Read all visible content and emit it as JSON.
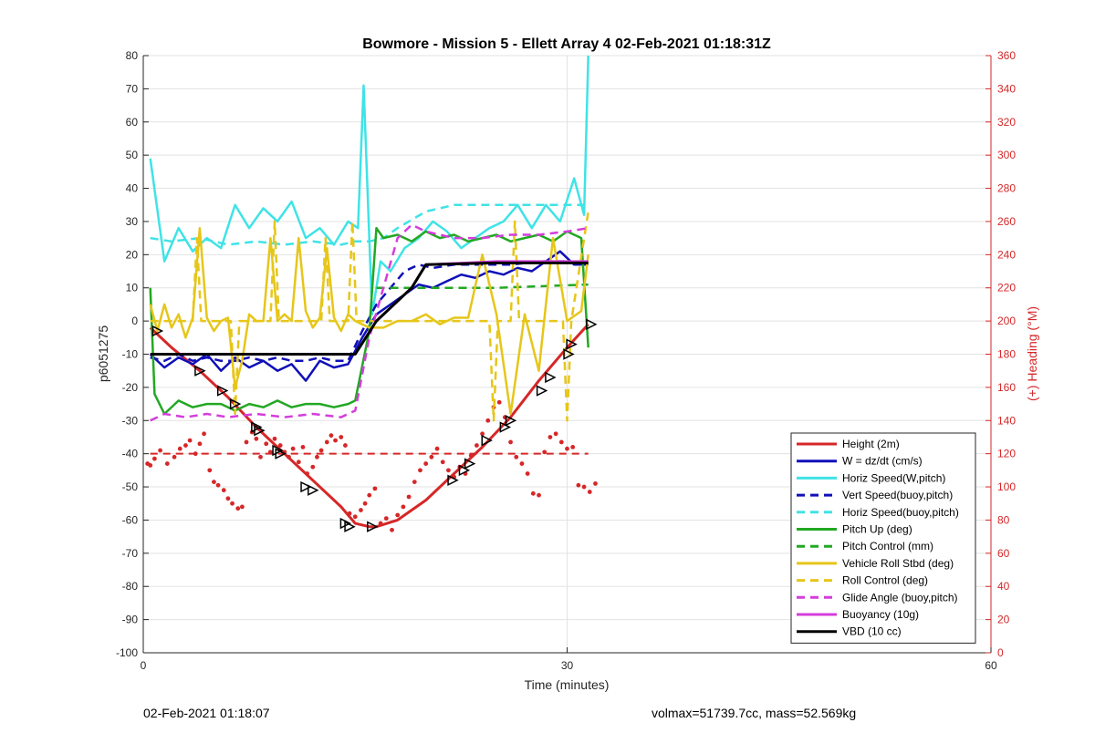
{
  "footer": {
    "timestamp": "02-Feb-2021 01:18:07",
    "stats": "volmax=51739.7cc, mass=52.569kg"
  },
  "colors": {
    "height": "#d62728",
    "w": "#1010b8",
    "horiz": "#3fe3e6",
    "pitch": "#22a822",
    "roll": "#e6c619",
    "glide": "#d43ddc",
    "vbd": "#000000",
    "right_axis": "#d62728"
  },
  "chart_data": {
    "type": "line",
    "title": "Bowmore - Mission 5 - Ellett Array 4 02-Feb-2021 01:18:31Z",
    "xlabel": "Time (minutes)",
    "ylabel": "p6051275",
    "ylabel_right": "(+) Heading (°M)",
    "xlim": [
      0,
      60
    ],
    "ylim": [
      -100,
      80
    ],
    "ylim_right": [
      0,
      360
    ],
    "xticks": [
      0,
      30,
      60
    ],
    "yticks": [
      -100,
      -90,
      -80,
      -70,
      -60,
      -50,
      -40,
      -30,
      -20,
      -10,
      0,
      10,
      20,
      30,
      40,
      50,
      60,
      70,
      80
    ],
    "yticks_right": [
      0,
      20,
      40,
      60,
      80,
      100,
      120,
      140,
      160,
      180,
      200,
      220,
      240,
      260,
      280,
      300,
      320,
      340,
      360
    ],
    "grid": true,
    "legend_position": "bottom-right",
    "series": [
      {
        "key": "height",
        "name": "Height (2m)",
        "style": "solid",
        "color": "#d62728",
        "x": [
          0.5,
          2,
          4,
          6,
          8,
          10,
          12,
          14,
          15,
          16,
          16.5,
          18,
          20,
          22,
          24,
          26,
          28,
          30,
          31.5
        ],
        "y": [
          -2,
          -8,
          -15,
          -23,
          -32,
          -40,
          -48,
          -56,
          -61,
          -62,
          -62,
          -60,
          -54,
          -46,
          -38,
          -29,
          -18,
          -8,
          -1
        ]
      },
      {
        "key": "w",
        "name": "W = dz/dt (cm/s)",
        "style": "solid",
        "color": "#1010b8",
        "x": [
          0.5,
          1.5,
          2.5,
          3.5,
          4.5,
          5.5,
          6.5,
          7.5,
          8.5,
          9.5,
          10.5,
          11.5,
          12.5,
          13.5,
          14.5,
          15.5,
          16.5,
          17.5,
          18.5,
          19.5,
          20.5,
          21.5,
          22.5,
          23.5,
          24.5,
          25.5,
          26.5,
          27.5,
          28.5,
          29.5,
          30.5,
          31.5
        ],
        "y": [
          -10,
          -14,
          -11,
          -13,
          -10,
          -15,
          -11,
          -14,
          -12,
          -15,
          -13,
          -18,
          -12,
          -14,
          -13,
          -5,
          2,
          5,
          8,
          11,
          10,
          12,
          14,
          13,
          15,
          14,
          16,
          15,
          18,
          21,
          17,
          17
        ]
      },
      {
        "key": "horiz",
        "name": "Horiz Speed(W,pitch)",
        "style": "solid",
        "color": "#3fe3e6",
        "x": [
          0.5,
          1.5,
          2.5,
          3.5,
          4.5,
          5.5,
          6.5,
          7.5,
          8.5,
          9.5,
          10.5,
          11.5,
          12.5,
          13.5,
          14.5,
          15.2,
          15.6,
          16.2,
          16.8,
          17.5,
          18.5,
          19.5,
          20.5,
          21.5,
          22.5,
          23.5,
          24.5,
          25.5,
          26.5,
          27.5,
          28.5,
          29.5,
          30.5,
          31.2,
          31.5
        ],
        "y": [
          49,
          18,
          28,
          21,
          25,
          22,
          35,
          28,
          34,
          30,
          36,
          25,
          28,
          23,
          30,
          28,
          71,
          2,
          18,
          15,
          22,
          25,
          30,
          27,
          22,
          25,
          28,
          30,
          35,
          28,
          35,
          30,
          43,
          32,
          80
        ]
      },
      {
        "key": "vert_buoy",
        "name": "Vert Speed(buoy,pitch)",
        "style": "dashed",
        "color": "#1010b8",
        "x": [
          0.5,
          1.5,
          2.5,
          3.5,
          4.5,
          5.5,
          6.5,
          7.5,
          8.5,
          9.5,
          10.5,
          11.5,
          12.5,
          13.5,
          14.5,
          15.5,
          16.5,
          17.5,
          18.5,
          19.5,
          20.5,
          22,
          24,
          26,
          28,
          30,
          31.5
        ],
        "y": [
          -11,
          -12,
          -10,
          -12,
          -11,
          -12,
          -12,
          -11,
          -12,
          -11,
          -12,
          -12,
          -11,
          -12,
          -12,
          -3,
          5,
          10,
          15,
          17,
          16,
          17,
          17,
          17,
          18,
          18,
          17
        ]
      },
      {
        "key": "horiz_buoy",
        "name": "Horiz Speed(buoy,pitch)",
        "style": "dashed",
        "color": "#3fe3e6",
        "x": [
          0.5,
          2,
          4,
          6,
          8,
          10,
          12,
          14,
          15,
          16,
          17,
          18,
          20,
          22,
          24,
          26,
          28,
          30,
          31.5
        ],
        "y": [
          25,
          24,
          25,
          23,
          24,
          23,
          24,
          23,
          24,
          24,
          25,
          28,
          33,
          35,
          35,
          35,
          35,
          35,
          35
        ]
      },
      {
        "key": "pitch",
        "name": "Pitch Up (deg)",
        "style": "solid",
        "color": "#22a822",
        "x": [
          0.5,
          0.8,
          1.5,
          2.5,
          3.5,
          4.5,
          5.5,
          6.5,
          7.5,
          8.5,
          9.5,
          10.5,
          11.5,
          12.5,
          13.5,
          14.5,
          15,
          16,
          16.5,
          17,
          18,
          19,
          20,
          21,
          22,
          23,
          24,
          25,
          26,
          27,
          28,
          29,
          30,
          31,
          31.5
        ],
        "y": [
          10,
          -22,
          -28,
          -24,
          -26,
          -25,
          -25,
          -27,
          -25,
          -26,
          -24,
          -26,
          -25,
          -25,
          -26,
          -25,
          -24,
          -3,
          28,
          25,
          26,
          24,
          27,
          25,
          26,
          24,
          25,
          26,
          24,
          25,
          26,
          24,
          27,
          25,
          -8
        ]
      },
      {
        "key": "pitch_ctrl",
        "name": "Pitch Control (mm)",
        "style": "dashed",
        "color": "#22a822",
        "x": [
          16.5,
          20,
          25,
          31.5
        ],
        "y": [
          10,
          10,
          10,
          11
        ]
      },
      {
        "key": "roll",
        "name": "Vehicle Roll Stbd (deg)",
        "style": "solid",
        "color": "#e6c619",
        "x": [
          0.5,
          1,
          1.5,
          2,
          2.5,
          3,
          3.5,
          4,
          4.5,
          5,
          5.5,
          6,
          6.5,
          7,
          7.5,
          8,
          8.5,
          9,
          9.5,
          10,
          10.5,
          11,
          11.5,
          12,
          12.5,
          13,
          13.5,
          14,
          14.5,
          15,
          16,
          17,
          18,
          19,
          20,
          21,
          22,
          23,
          24,
          25,
          26,
          27,
          28,
          29,
          30,
          31,
          31.5
        ],
        "y": [
          5,
          -3,
          5,
          -2,
          2,
          -5,
          1,
          28,
          1,
          -3,
          0,
          1,
          -20,
          -12,
          2,
          0,
          0,
          25,
          0,
          2,
          0,
          25,
          3,
          -2,
          1,
          22,
          1,
          -3,
          2,
          0,
          -2,
          -2,
          0,
          0,
          2,
          -1,
          1,
          1,
          20,
          2,
          -28,
          2,
          -15,
          25,
          0,
          3,
          20
        ]
      },
      {
        "key": "roll_ctrl",
        "name": "Roll Control (deg)",
        "style": "dashed",
        "color": "#e6c619",
        "x": [
          0.5,
          3.5,
          3.8,
          4.1,
          6.2,
          6.5,
          6.8,
          9,
          9.3,
          9.6,
          12.6,
          12.9,
          13.2,
          14.5,
          14.8,
          15.1,
          16,
          20,
          24.5,
          24.8,
          25.1,
          26,
          26.3,
          26.6,
          29.7,
          30,
          30.3,
          31.5
        ],
        "y": [
          0,
          0,
          25,
          0,
          0,
          -28,
          0,
          0,
          30,
          0,
          0,
          25,
          0,
          0,
          30,
          0,
          0,
          0,
          0,
          -30,
          0,
          0,
          30,
          0,
          0,
          -30,
          0,
          33
        ]
      },
      {
        "key": "glide",
        "name": "Glide Angle (buoy,pitch)",
        "style": "dashed",
        "color": "#d43ddc",
        "x": [
          0.5,
          1.5,
          3,
          4.5,
          6,
          8,
          10,
          12,
          14,
          15,
          16,
          17,
          18,
          19,
          20,
          22,
          24,
          26,
          28,
          30,
          31.5
        ],
        "y": [
          -30,
          -28,
          -29,
          -28,
          -29,
          -28,
          -29,
          -28,
          -29,
          -27,
          -5,
          10,
          25,
          29,
          27,
          25,
          25,
          26,
          26,
          27,
          28
        ]
      },
      {
        "key": "buoyancy",
        "name": "Buoyancy (10g)",
        "style": "solid",
        "color": "#d43ddc",
        "x": [
          0.5,
          15,
          16.5,
          19,
          20,
          25,
          31.5
        ],
        "y": [
          -10,
          -10,
          0,
          10,
          17,
          18,
          18
        ]
      },
      {
        "key": "vbd",
        "name": "VBD (10 cc)",
        "style": "solid",
        "color": "#000000",
        "x": [
          0.5,
          15,
          16.5,
          19,
          20,
          25,
          31.5
        ],
        "y": [
          -10,
          -10,
          0,
          10,
          17,
          17.5,
          17.5
        ]
      }
    ],
    "markers": {
      "name": "Height samples",
      "color": "#000000",
      "points": [
        [
          1,
          -3
        ],
        [
          4,
          -15
        ],
        [
          5.6,
          -21
        ],
        [
          6.5,
          -25
        ],
        [
          8,
          -32
        ],
        [
          8.2,
          -33
        ],
        [
          9.5,
          -39
        ],
        [
          9.7,
          -40
        ],
        [
          11.5,
          -50
        ],
        [
          12,
          -51
        ],
        [
          14.3,
          -61
        ],
        [
          14.6,
          -62
        ],
        [
          16.2,
          -62
        ],
        [
          21.9,
          -48
        ],
        [
          22.7,
          -45
        ],
        [
          23.1,
          -43
        ],
        [
          24.3,
          -36
        ],
        [
          25.6,
          -32
        ],
        [
          26,
          -30
        ],
        [
          28.2,
          -21
        ],
        [
          28.8,
          -17
        ],
        [
          30.1,
          -10
        ],
        [
          30.3,
          -7
        ],
        [
          31.7,
          -1
        ]
      ]
    },
    "heading_points": {
      "name": "Heading",
      "color": "#d62728",
      "axis": "right",
      "points": [
        [
          0.3,
          114
        ],
        [
          0.5,
          113
        ],
        [
          0.8,
          117
        ],
        [
          1.2,
          122
        ],
        [
          1.7,
          114
        ],
        [
          2.2,
          118
        ],
        [
          2.6,
          123
        ],
        [
          3,
          125
        ],
        [
          3.3,
          128
        ],
        [
          3.7,
          120
        ],
        [
          4,
          126
        ],
        [
          4.3,
          132
        ],
        [
          4.7,
          110
        ],
        [
          5,
          103
        ],
        [
          5.3,
          101
        ],
        [
          5.7,
          98
        ],
        [
          6,
          93
        ],
        [
          6.3,
          90
        ],
        [
          6.7,
          87
        ],
        [
          7,
          88
        ],
        [
          7.3,
          127
        ],
        [
          7.7,
          133
        ],
        [
          8,
          129
        ],
        [
          8.3,
          118
        ],
        [
          8.7,
          126
        ],
        [
          9,
          121
        ],
        [
          9.3,
          129
        ],
        [
          9.7,
          125
        ],
        [
          10,
          121
        ],
        [
          10.3,
          118
        ],
        [
          10.6,
          123
        ],
        [
          11,
          115
        ],
        [
          11.3,
          124
        ],
        [
          11.6,
          108
        ],
        [
          12,
          112
        ],
        [
          12.3,
          118
        ],
        [
          12.6,
          122
        ],
        [
          13,
          127
        ],
        [
          13.3,
          131
        ],
        [
          13.6,
          128
        ],
        [
          14,
          130
        ],
        [
          14.3,
          125
        ],
        [
          14.6,
          84
        ],
        [
          15,
          82
        ],
        [
          15.4,
          86
        ],
        [
          15.7,
          90
        ],
        [
          16,
          95
        ],
        [
          16.4,
          99
        ],
        [
          16.8,
          78
        ],
        [
          17.2,
          81
        ],
        [
          17.6,
          74
        ],
        [
          18,
          83
        ],
        [
          18.4,
          88
        ],
        [
          18.8,
          94
        ],
        [
          19.2,
          103
        ],
        [
          19.6,
          110
        ],
        [
          20,
          114
        ],
        [
          20.4,
          118
        ],
        [
          20.8,
          123
        ],
        [
          21.2,
          115
        ],
        [
          21.6,
          110
        ],
        [
          22,
          106
        ],
        [
          22.4,
          112
        ],
        [
          22.8,
          108
        ],
        [
          23.2,
          119
        ],
        [
          23.6,
          125
        ],
        [
          24,
          132
        ],
        [
          24.4,
          140
        ],
        [
          24.8,
          148
        ],
        [
          25.2,
          151
        ],
        [
          25.6,
          142
        ],
        [
          26,
          127
        ],
        [
          26.4,
          118
        ],
        [
          26.8,
          114
        ],
        [
          27.2,
          108
        ],
        [
          27.6,
          96
        ],
        [
          28,
          95
        ],
        [
          28.4,
          121
        ],
        [
          28.8,
          130
        ],
        [
          29.2,
          132
        ],
        [
          29.6,
          127
        ],
        [
          30,
          123
        ],
        [
          30.4,
          124
        ],
        [
          30.8,
          101
        ],
        [
          31.2,
          100
        ],
        [
          31.6,
          97
        ],
        [
          32,
          102
        ]
      ]
    },
    "reference_line": {
      "name": "Height reference",
      "color": "#d62728",
      "style": "dashed",
      "x": [
        0.5,
        31.5
      ],
      "y": [
        -40,
        -40
      ]
    }
  }
}
